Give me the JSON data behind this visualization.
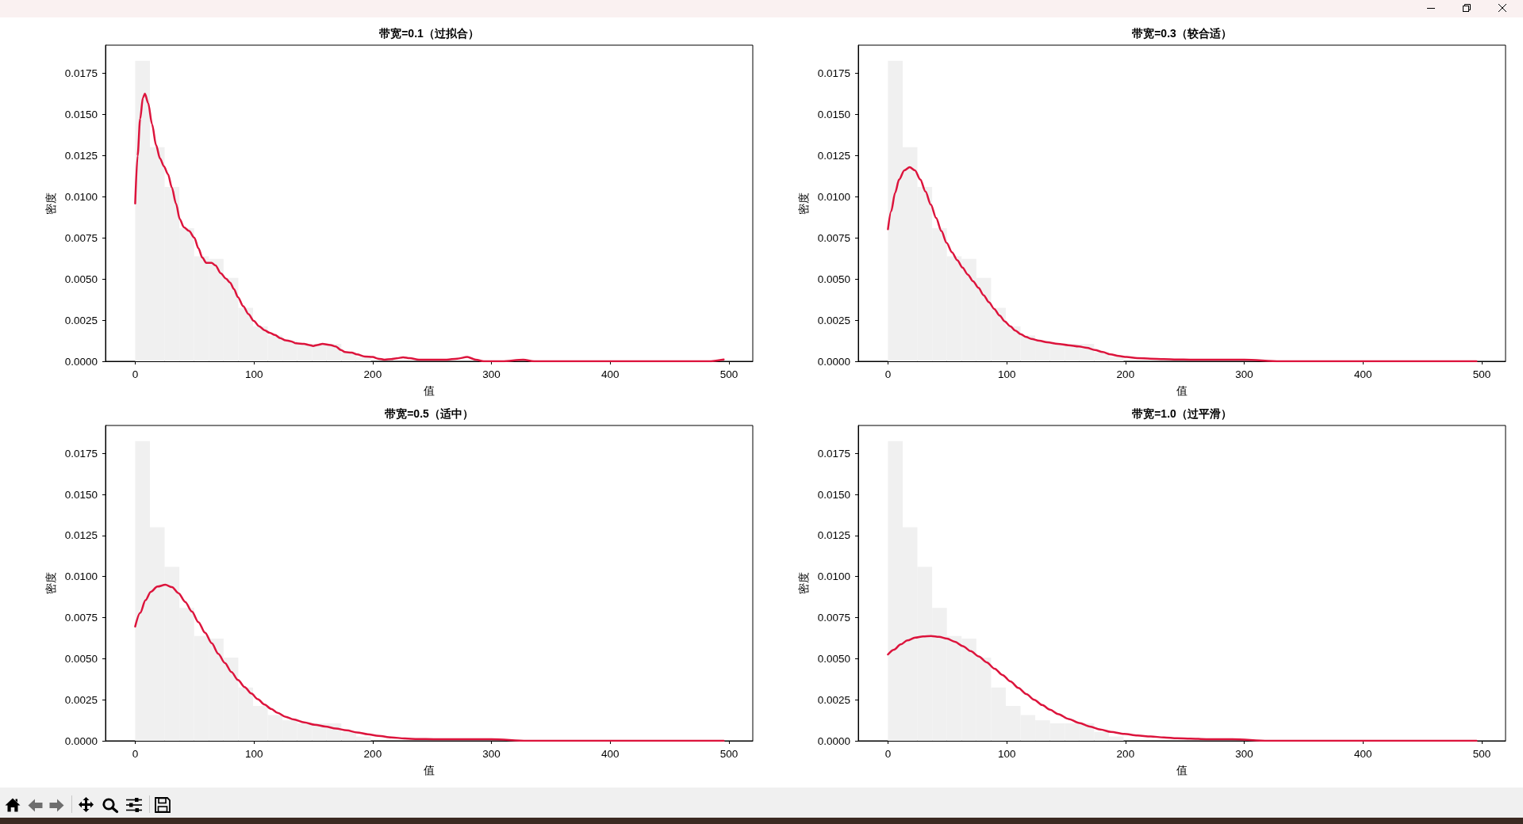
{
  "chart_data": [
    {
      "type": "histogram",
      "title": "带宽=0.1（过拟合）",
      "xlabel": "值",
      "ylabel": "密度",
      "xlim": [
        -25,
        520
      ],
      "ylim": [
        0,
        0.0192
      ],
      "xticks": [
        0,
        100,
        200,
        300,
        400,
        500
      ],
      "yticks": [
        {
          "value": 0,
          "label": "0.0000"
        },
        {
          "value": 0.0025,
          "label": "0.0025"
        },
        {
          "value": 0.005,
          "label": "0.0050"
        },
        {
          "value": 0.0075,
          "label": "0.0075"
        },
        {
          "value": 0.01,
          "label": "0.0100"
        },
        {
          "value": 0.0125,
          "label": "0.0125"
        },
        {
          "value": 0.015,
          "label": "0.0150"
        },
        {
          "value": 0.0175,
          "label": "0.0175"
        }
      ],
      "bins": [
        0,
        12.4,
        24.8,
        37.2,
        49.6,
        62,
        74.4,
        86.8,
        99.2,
        111.6,
        124,
        136.4,
        148.8,
        161.2,
        173.6,
        186,
        198.4,
        210.8,
        223.2,
        235.6,
        248,
        260.4,
        272.8,
        285.2,
        297.6,
        310,
        322.4,
        334.8,
        347.2,
        359.6,
        372,
        384.4,
        396.8,
        409.2,
        421.6,
        434,
        446.4,
        458.8,
        471.2,
        483.6,
        496
      ],
      "series": [
        {
          "color": "#f0f0f0",
          "values": [
            0.01825,
            0.013,
            0.01059,
            0.00809,
            0.00638,
            0.00622,
            0.00506,
            0.00325,
            0.00212,
            0.00157,
            0.00125,
            0.00106,
            0.00106,
            0.00106,
            0.00054,
            0.00026,
            null,
            0,
            null,
            0,
            null,
            0,
            null,
            0,
            0,
            0,
            null,
            0,
            0,
            0,
            0,
            0,
            0,
            0,
            0,
            0,
            0,
            0,
            0,
            null
          ]
        },
        {
          "type": "line",
          "color": "#dc143c",
          "x": [
            0,
            2,
            4.2,
            6.5,
            8.2,
            10.9,
            14.2,
            17.6,
            20.9,
            24.2,
            27.6,
            30.9,
            34.3,
            37.6,
            40.9,
            45.4,
            49.8,
            53.2,
            56.5,
            59.8,
            64.3,
            67.6,
            72.1,
            76.5,
            79.9,
            83.2,
            86.5,
            91,
            95.4,
            99.9,
            104.3,
            108.8,
            113.2,
            117.7,
            122.1,
            126.6,
            131,
            135.5,
            142.2,
            146.6,
            149.9,
            153.3,
            157.7,
            164.4,
            168.8,
            173.3,
            176.6,
            182.2,
            186.7,
            193.4,
            200,
            204.5,
            210,
            215.6,
            220,
            225.6,
            231.1,
            238.9,
            246.7,
            253.4,
            262.3,
            271.2,
            279.6,
            286.8,
            293.5,
            309,
            326.8,
            335.7,
            353.5,
            400,
            464.8,
            482.6,
            495.5
          ],
          "values": [
            0.00959,
            0.01248,
            0.01473,
            0.01601,
            0.01625,
            0.01569,
            0.0144,
            0.01312,
            0.01232,
            0.01184,
            0.01136,
            0.01055,
            0.00959,
            0.00863,
            0.00815,
            0.00791,
            0.00751,
            0.00687,
            0.0063,
            0.00598,
            0.00598,
            0.00582,
            0.00534,
            0.00502,
            0.00478,
            0.00438,
            0.0039,
            0.00334,
            0.00286,
            0.00245,
            0.00213,
            0.00189,
            0.00173,
            0.0016,
            0.00141,
            0.00128,
            0.00122,
            0.00109,
            0.00106,
            0.00099,
            0.00093,
            0.00099,
            0.00106,
            0.00099,
            0.0009,
            0.00069,
            0.00056,
            0.00053,
            0.00042,
            0.00029,
            0.00026,
            0.00016,
            0.0001,
            0.00013,
            0.00018,
            0.00024,
            0.00019,
            0.0001,
            0.0001,
            0.0001,
            0.0001,
            0.00016,
            0.00026,
            0.0001,
            0,
            0,
            0.0001,
            0,
            0,
            0,
            0,
            0,
            0.00011
          ]
        }
      ]
    },
    {
      "type": "histogram",
      "title": "带宽=0.3（较合适）",
      "xlabel": "值",
      "ylabel": "密度",
      "xlim": [
        -25,
        520
      ],
      "ylim": [
        0,
        0.0192
      ],
      "xticks": [
        0,
        100,
        200,
        300,
        400,
        500
      ],
      "yticks": [
        {
          "value": 0,
          "label": "0.0000"
        },
        {
          "value": 0.0025,
          "label": "0.0025"
        },
        {
          "value": 0.005,
          "label": "0.0050"
        },
        {
          "value": 0.0075,
          "label": "0.0075"
        },
        {
          "value": 0.01,
          "label": "0.0100"
        },
        {
          "value": 0.0125,
          "label": "0.0125"
        },
        {
          "value": 0.015,
          "label": "0.0150"
        },
        {
          "value": 0.0175,
          "label": "0.0175"
        }
      ],
      "bins": [
        0,
        12.4,
        24.8,
        37.2,
        49.6,
        62,
        74.4,
        86.8,
        99.2,
        111.6,
        124,
        136.4,
        148.8,
        161.2,
        173.6,
        186,
        198.4,
        210.8,
        223.2,
        235.6,
        248,
        260.4,
        272.8,
        285.2,
        297.6,
        310,
        322.4,
        334.8,
        347.2,
        359.6,
        372,
        384.4,
        396.8,
        409.2,
        421.6,
        434,
        446.4,
        458.8,
        471.2,
        483.6,
        496
      ],
      "series": [
        {
          "color": "#f0f0f0",
          "values": [
            0.01825,
            0.013,
            0.01059,
            0.00809,
            0.00638,
            0.00622,
            0.00506,
            0.00325,
            0.00212,
            0.00157,
            0.00125,
            0.00106,
            0.00106,
            0.00106,
            0.00054,
            0.00026,
            null,
            0,
            null,
            0,
            null,
            0,
            null,
            0,
            0,
            0,
            null,
            0,
            0,
            0,
            0,
            0,
            0,
            0,
            0,
            0,
            0,
            0,
            0,
            null
          ]
        },
        {
          "type": "line",
          "color": "#dc143c",
          "x": [
            0,
            2.7,
            6,
            9.4,
            13.8,
            18.3,
            22.7,
            27.2,
            31.6,
            36.1,
            40.5,
            45,
            49.4,
            53.9,
            58.4,
            62.8,
            67.3,
            71.7,
            76.2,
            80.6,
            85.1,
            89.5,
            94,
            98.4,
            102.9,
            107.3,
            111.8,
            116.3,
            120.7,
            127.4,
            134.1,
            143,
            151.9,
            160.8,
            167.5,
            174.2,
            180.8,
            187.5,
            194.2,
            200.9,
            209.8,
            220.9,
            232.1,
            243.2,
            254.3,
            267.7,
            280,
            300,
            330,
            360,
            400,
            460,
            480,
            495.5
          ],
          "values": [
            0.00802,
            0.00911,
            0.01023,
            0.01104,
            0.0116,
            0.01179,
            0.0116,
            0.01104,
            0.01031,
            0.00951,
            0.00871,
            0.00791,
            0.00719,
            0.00662,
            0.00614,
            0.00569,
            0.00526,
            0.00486,
            0.00446,
            0.00401,
            0.00358,
            0.00318,
            0.00278,
            0.00242,
            0.00213,
            0.00186,
            0.00165,
            0.00148,
            0.00136,
            0.00125,
            0.00115,
            0.00106,
            0.00098,
            0.0009,
            0.00082,
            0.00069,
            0.00056,
            0.00042,
            0.00032,
            0.00026,
            0.00019,
            0.00016,
            0.00013,
            0.00011,
            0.0001,
            0.0001,
            0.0001,
            0.0001,
            0,
            0,
            0,
            0,
            0,
            0
          ]
        }
      ]
    },
    {
      "type": "histogram",
      "title": "带宽=0.5（适中）",
      "xlabel": "值",
      "ylabel": "密度",
      "xlim": [
        -25,
        520
      ],
      "ylim": [
        0,
        0.0192
      ],
      "xticks": [
        0,
        100,
        200,
        300,
        400,
        500
      ],
      "yticks": [
        {
          "value": 0,
          "label": "0.0000"
        },
        {
          "value": 0.0025,
          "label": "0.0025"
        },
        {
          "value": 0.005,
          "label": "0.0050"
        },
        {
          "value": 0.0075,
          "label": "0.0075"
        },
        {
          "value": 0.01,
          "label": "0.0100"
        },
        {
          "value": 0.0125,
          "label": "0.0125"
        },
        {
          "value": 0.015,
          "label": "0.0150"
        },
        {
          "value": 0.0175,
          "label": "0.0175"
        }
      ],
      "bins": [
        0,
        12.4,
        24.8,
        37.2,
        49.6,
        62,
        74.4,
        86.8,
        99.2,
        111.6,
        124,
        136.4,
        148.8,
        161.2,
        173.6,
        186,
        198.4,
        210.8,
        223.2,
        235.6,
        248,
        260.4,
        272.8,
        285.2,
        297.6,
        310,
        322.4,
        334.8,
        347.2,
        359.6,
        372,
        384.4,
        396.8,
        409.2,
        421.6,
        434,
        446.4,
        458.8,
        471.2,
        483.6,
        496
      ],
      "series": [
        {
          "color": "#f0f0f0",
          "values": [
            0.01825,
            0.013,
            0.01059,
            0.00809,
            0.00638,
            0.00622,
            0.00506,
            0.00325,
            0.00212,
            0.00157,
            0.00125,
            0.00106,
            0.00106,
            0.00106,
            0.00054,
            0.00026,
            null,
            0,
            null,
            0,
            null,
            0,
            null,
            0,
            0,
            0,
            null,
            0,
            0,
            0,
            0,
            0,
            0,
            0,
            0,
            0,
            0,
            0,
            0,
            null
          ]
        },
        {
          "type": "line",
          "color": "#dc143c",
          "x": [
            0,
            4.2,
            8.7,
            13.1,
            18.7,
            25.4,
            31,
            36.5,
            42.1,
            47.7,
            53.2,
            58.8,
            64.4,
            70,
            75.5,
            81.1,
            86.6,
            92.2,
            97.8,
            103.3,
            108.9,
            114.5,
            120,
            126.7,
            133.4,
            142.3,
            151.2,
            160.1,
            169,
            178,
            186.9,
            195.8,
            204.7,
            215.8,
            227,
            238.1,
            251.4,
            280,
            300,
            330,
            360,
            400,
            450,
            480,
            495.5
          ],
          "values": [
            0.00696,
            0.00779,
            0.00856,
            0.00907,
            0.00939,
            0.0095,
            0.00936,
            0.00899,
            0.00846,
            0.00787,
            0.00723,
            0.00659,
            0.00595,
            0.0053,
            0.00474,
            0.00418,
            0.0037,
            0.00327,
            0.00288,
            0.00253,
            0.00221,
            0.00194,
            0.0017,
            0.00146,
            0.0013,
            0.00112,
            0.00098,
            0.00087,
            0.00075,
            0.00064,
            0.00051,
            0.0004,
            0.0003,
            0.00021,
            0.00014,
            0.00011,
            0.0001,
            0.0001,
            0.0001,
            0,
            0,
            0,
            0,
            0,
            0
          ]
        }
      ]
    },
    {
      "type": "histogram",
      "title": "带宽=1.0（过平滑）",
      "xlabel": "值",
      "ylabel": "密度",
      "xlim": [
        -25,
        520
      ],
      "ylim": [
        0,
        0.0192
      ],
      "xticks": [
        0,
        100,
        200,
        300,
        400,
        500
      ],
      "yticks": [
        {
          "value": 0,
          "label": "0.0000"
        },
        {
          "value": 0.0025,
          "label": "0.0025"
        },
        {
          "value": 0.005,
          "label": "0.0050"
        },
        {
          "value": 0.0075,
          "label": "0.0075"
        },
        {
          "value": 0.01,
          "label": "0.0100"
        },
        {
          "value": 0.0125,
          "label": "0.0125"
        },
        {
          "value": 0.015,
          "label": "0.0150"
        },
        {
          "value": 0.0175,
          "label": "0.0175"
        }
      ],
      "bins": [
        0,
        12.4,
        24.8,
        37.2,
        49.6,
        62,
        74.4,
        86.8,
        99.2,
        111.6,
        124,
        136.4,
        148.8,
        161.2,
        173.6,
        186,
        198.4,
        210.8,
        223.2,
        235.6,
        248,
        260.4,
        272.8,
        285.2,
        297.6,
        310,
        322.4,
        334.8,
        347.2,
        359.6,
        372,
        384.4,
        396.8,
        409.2,
        421.6,
        434,
        446.4,
        458.8,
        471.2,
        483.6,
        496
      ],
      "series": [
        {
          "color": "#f0f0f0",
          "values": [
            0.01825,
            0.013,
            0.01059,
            0.00809,
            0.00638,
            0.00622,
            0.00506,
            0.00325,
            0.00212,
            0.00157,
            0.00125,
            0.00106,
            0.00106,
            0.00106,
            0.00054,
            0.00026,
            null,
            0,
            null,
            0,
            null,
            0,
            null,
            0,
            0,
            0,
            null,
            0,
            0,
            0,
            0,
            0,
            0,
            0,
            0,
            0,
            0,
            0,
            0,
            null
          ]
        },
        {
          "type": "line",
          "color": "#dc143c",
          "x": [
            0,
            5.1,
            10.7,
            16.3,
            22.9,
            29.6,
            36.3,
            43,
            49.7,
            56.3,
            63,
            69.7,
            76.4,
            83.1,
            89.8,
            96.4,
            103.1,
            109.8,
            116.5,
            123.2,
            129.8,
            136.5,
            143.2,
            152.1,
            161,
            169.9,
            178.8,
            187.7,
            198.9,
            210,
            221.2,
            232.3,
            243.4,
            254.6,
            268,
            290,
            320,
            350,
            400,
            450,
            495.5
          ],
          "values": [
            0.00526,
            0.00555,
            0.00587,
            0.00611,
            0.00628,
            0.00636,
            0.00638,
            0.00633,
            0.00622,
            0.00603,
            0.00577,
            0.00546,
            0.00514,
            0.00478,
            0.00439,
            0.00401,
            0.00362,
            0.00322,
            0.00285,
            0.0025,
            0.00218,
            0.00189,
            0.00163,
            0.00133,
            0.00109,
            0.00087,
            0.00069,
            0.00054,
            0.00042,
            0.00032,
            0.00026,
            0.00021,
            0.00016,
            0.00013,
            0.0001,
            0.0001,
            0,
            0,
            0,
            0,
            0
          ]
        }
      ]
    }
  ]
}
